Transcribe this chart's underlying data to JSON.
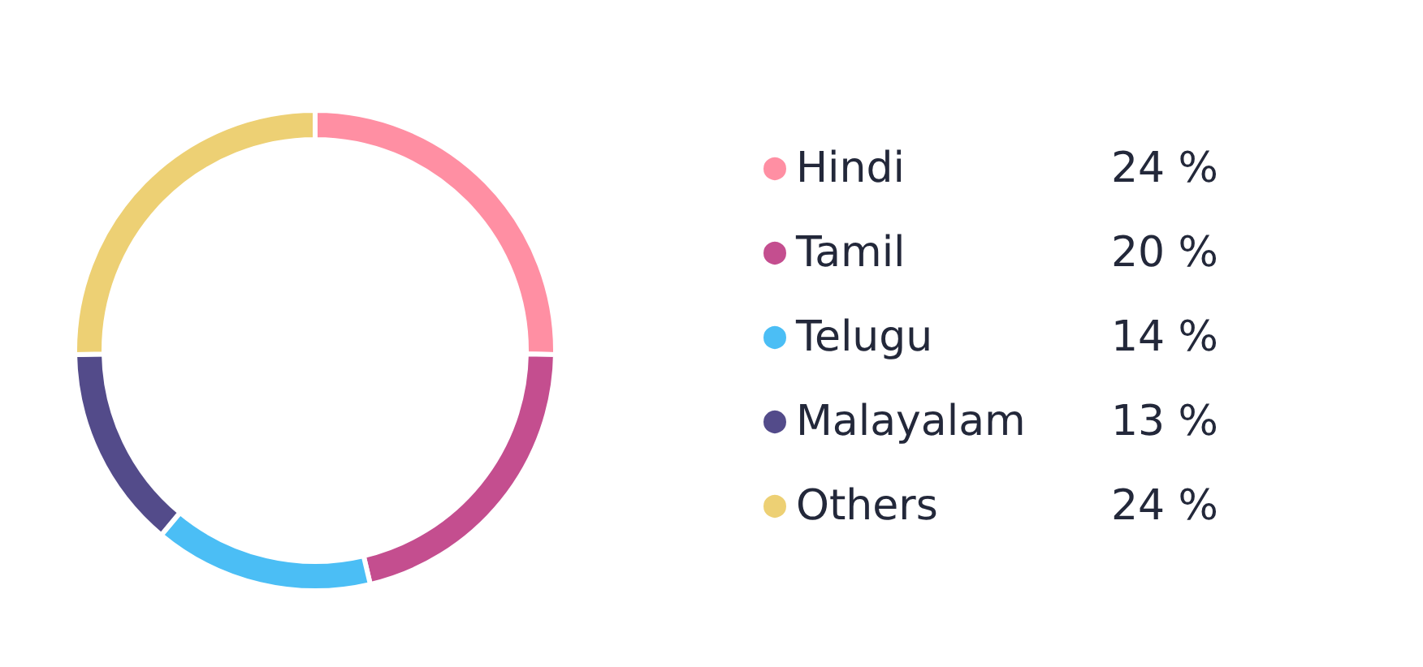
{
  "chart_data": {
    "type": "donut",
    "categories": [
      "Hindi",
      "Tamil",
      "Telugu",
      "Malayalam",
      "Others"
    ],
    "values": [
      24,
      20,
      14,
      13,
      24
    ],
    "value_labels": [
      "24 %",
      "20 %",
      "14 %",
      "13 %",
      "24 %"
    ],
    "colors": [
      "#ff8fa3",
      "#c44e8f",
      "#4bbef5",
      "#534b8a",
      "#edd074"
    ],
    "legend": "right"
  }
}
